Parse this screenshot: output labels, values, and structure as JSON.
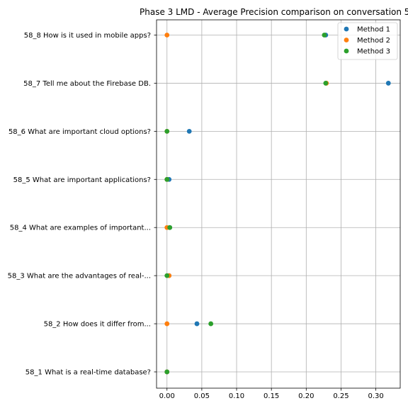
{
  "chart_data": {
    "type": "scatter",
    "title": "Phase 3 LMD - Average Precision comparison on conversation 5",
    "xlabel": "",
    "ylabel": "",
    "categories": [
      "58_1 What is a real-time database?",
      "58_2 How does it differ from...",
      "58_3 What are the advantages of real-...",
      "58_4 What are examples of important...",
      "58_5 What are important applications?",
      "58_6 What are important cloud options?",
      "58_7 Tell me about the Firebase DB.",
      "58_8 How is it used in mobile apps?"
    ],
    "xlim": [
      -0.015,
      0.335
    ],
    "xticks": [
      0.0,
      0.05,
      0.1,
      0.15,
      0.2,
      0.25,
      0.3
    ],
    "xtick_labels": [
      "0.00",
      "0.05",
      "0.10",
      "0.15",
      "0.20",
      "0.25",
      "0.30"
    ],
    "grid": true,
    "legend_position": "top-right",
    "series": [
      {
        "name": "Method 1",
        "color": "#1f77b4",
        "values": [
          0.0,
          0.043,
          0.003,
          0.004,
          0.003,
          0.032,
          0.318,
          0.228
        ]
      },
      {
        "name": "Method 2",
        "color": "#ff7f0e",
        "values": [
          0.0,
          0.0,
          0.003,
          0.0,
          0.0,
          0.0,
          0.229,
          0.0
        ]
      },
      {
        "name": "Method 3",
        "color": "#2ca02c",
        "values": [
          0.0,
          0.063,
          0.0,
          0.004,
          0.0,
          0.0,
          0.228,
          0.226
        ]
      }
    ]
  }
}
